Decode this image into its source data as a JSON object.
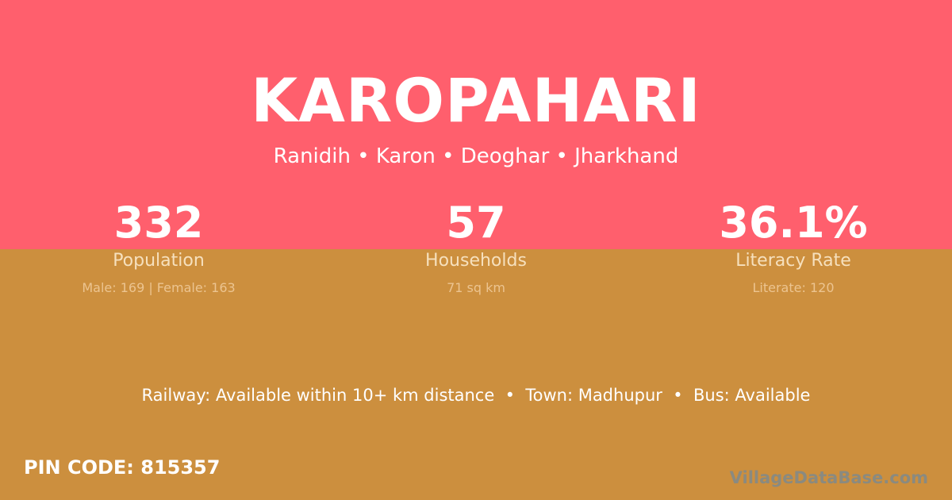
{
  "colors": {
    "top_bg": "#ff5f6d",
    "bottom_bg": "#cc8f3e"
  },
  "village": {
    "name": "KAROPAHARI",
    "location": "Ranidih • Karon • Deoghar • Jharkhand"
  },
  "stats": [
    {
      "value": "332",
      "label": "Population",
      "detail": "Male: 169 | Female: 163"
    },
    {
      "value": "57",
      "label": "Households",
      "detail": "71 sq km"
    },
    {
      "value": "36.1%",
      "label": "Literacy Rate",
      "detail": "Literate: 120"
    }
  ],
  "amenities": "Railway: Available within 10+ km distance  •  Town: Madhupur  •  Bus: Available",
  "pin_code": "PIN CODE: 815357",
  "logo": "VillageDataBase.com"
}
